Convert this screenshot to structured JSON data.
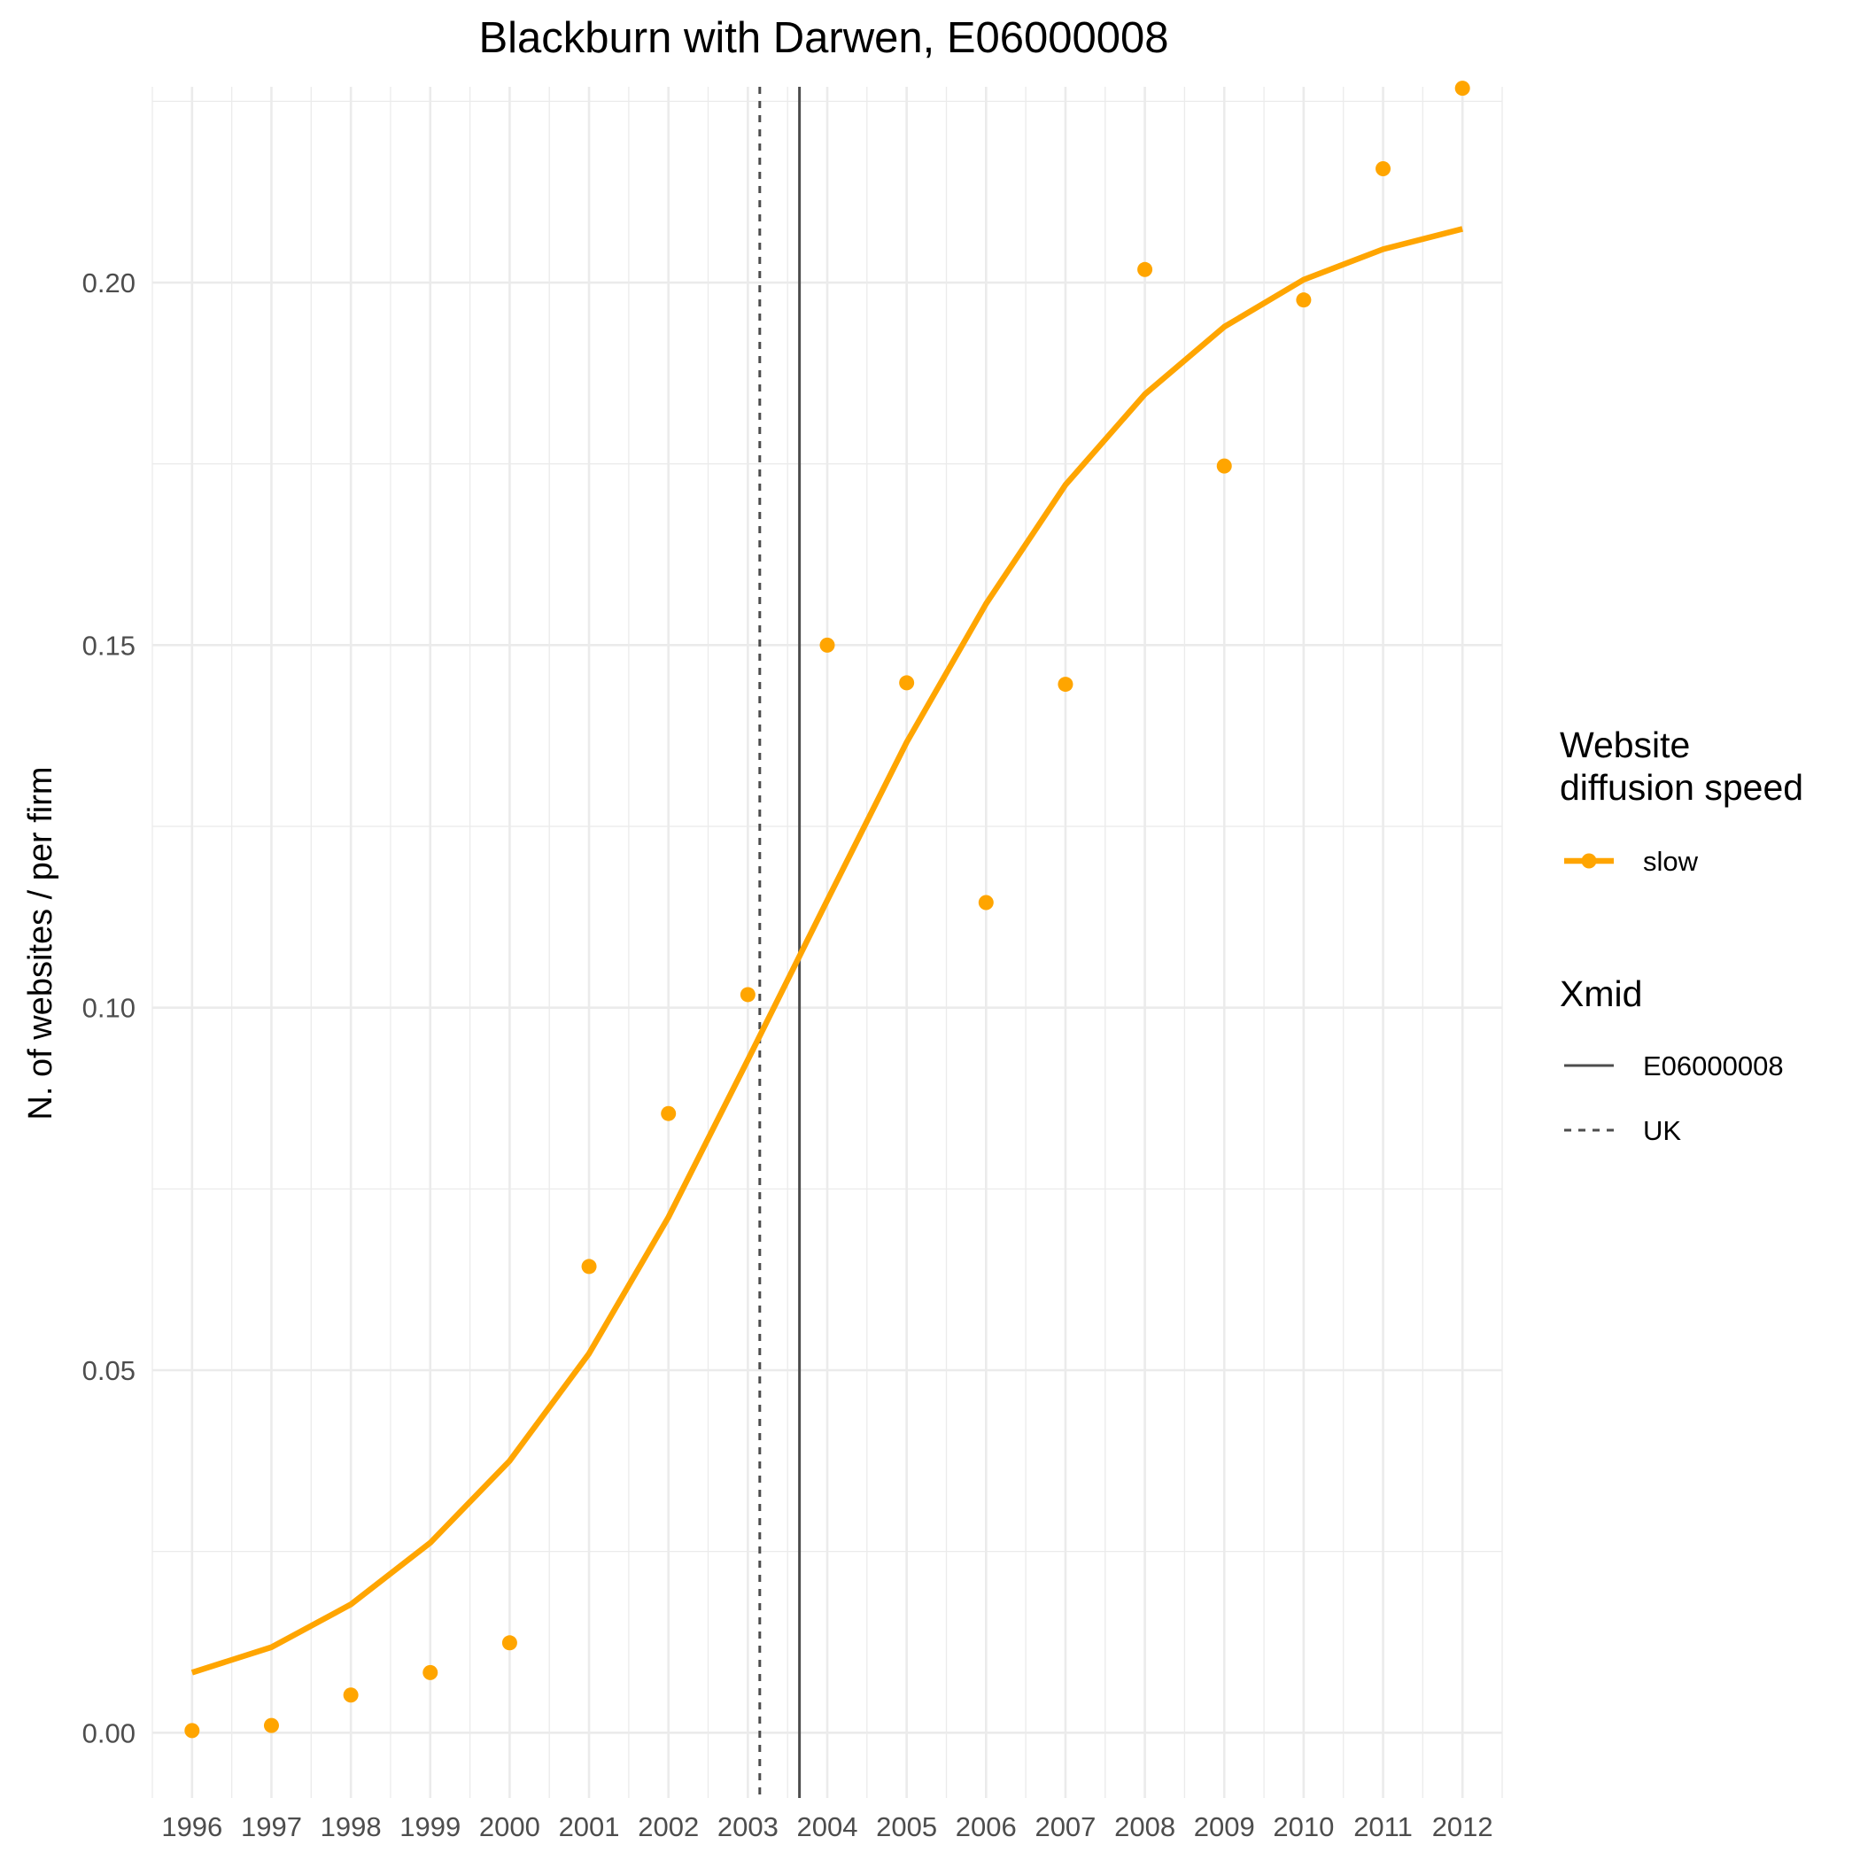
{
  "chart_data": {
    "type": "line",
    "title": "Blackburn with Darwen, E06000008",
    "xlabel": "",
    "ylabel": "N. of websites / per firm",
    "x": [
      1996,
      1997,
      1998,
      1999,
      2000,
      2001,
      2002,
      2003,
      2004,
      2005,
      2006,
      2007,
      2008,
      2009,
      2010,
      2011,
      2012
    ],
    "xlim": [
      1995.5,
      2012.5
    ],
    "ylim": [
      -0.009,
      0.227
    ],
    "y_ticks": [
      0.0,
      0.05,
      0.1,
      0.15,
      0.2
    ],
    "y_tick_labels": [
      "0.00",
      "0.05",
      "0.10",
      "0.15",
      "0.20"
    ],
    "grid": true,
    "series": [
      {
        "name": "slow",
        "kind": "line",
        "color": "#FFA500",
        "values": [
          0.0083,
          0.0118,
          0.0177,
          0.0262,
          0.0375,
          0.0523,
          0.0711,
          0.0928,
          0.1148,
          0.1366,
          0.1557,
          0.1721,
          0.1846,
          0.1939,
          0.2004,
          0.2046,
          0.2074
        ]
      },
      {
        "name": "slow",
        "kind": "points",
        "color": "#FFA500",
        "values": [
          0.0003,
          0.001,
          0.0052,
          0.0083,
          0.0124,
          0.0643,
          0.0854,
          0.1018,
          0.15,
          0.1448,
          0.1145,
          0.1446,
          0.2018,
          0.1747,
          0.1976,
          0.2157,
          0.2268
        ]
      }
    ],
    "vlines": [
      {
        "name": "E06000008",
        "x": 2003.65,
        "style": "solid",
        "color": "#4d4d4d"
      },
      {
        "name": "UK",
        "x": 2003.15,
        "style": "dashed",
        "color": "#4d4d4d"
      }
    ],
    "legend": {
      "placement": "right",
      "groups": [
        {
          "title_lines": [
            "Website",
            "diffusion speed"
          ],
          "entries": [
            {
              "label": "slow",
              "style": "line-point",
              "color": "#FFA500"
            }
          ]
        },
        {
          "title_lines": [
            "Xmid"
          ],
          "entries": [
            {
              "label": "E06000008",
              "style": "solid"
            },
            {
              "label": "UK",
              "style": "dashed"
            }
          ]
        }
      ]
    }
  }
}
